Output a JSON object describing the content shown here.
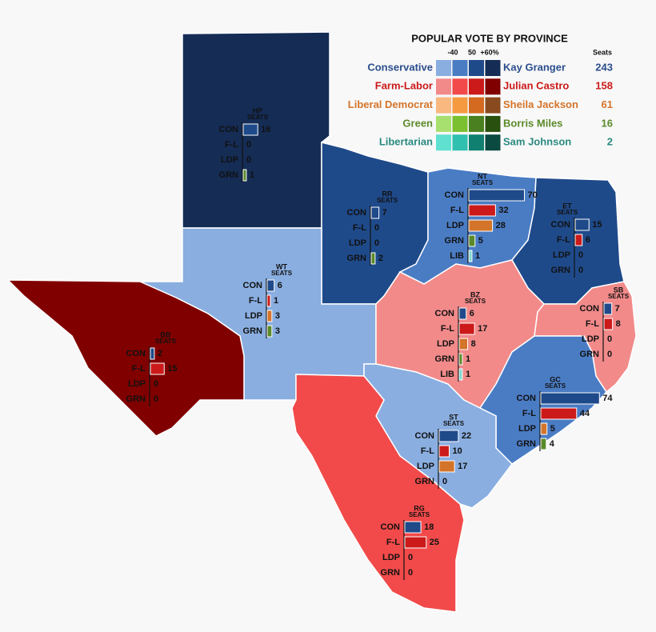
{
  "legend": {
    "title": "POPULAR VOTE BY PROVINCE",
    "scale_labels": [
      "-40",
      "50",
      "+60%"
    ],
    "seats_header": "Seats",
    "parties": [
      {
        "name": "Conservative",
        "leader": "Kay Granger",
        "seats": 243,
        "color": "#2a4e8c",
        "shades": [
          "#8aaee0",
          "#4a7cc4",
          "#1f4a8a",
          "#152c55"
        ]
      },
      {
        "name": "Farm-Labor",
        "leader": "Julian Castro",
        "seats": 158,
        "color": "#cc1a1a",
        "shades": [
          "#f28a8a",
          "#f24a4a",
          "#cc1a1a",
          "#800000"
        ]
      },
      {
        "name": "Liberal Democrat",
        "leader": "Sheila Jackson",
        "seats": 61,
        "color": "#d4742a",
        "shades": [
          "#f8b880",
          "#f59a40",
          "#d46a20",
          "#8a4a20"
        ]
      },
      {
        "name": "Green",
        "leader": "Borris Miles",
        "seats": 16,
        "color": "#5a8a2a",
        "shades": [
          "#a8e070",
          "#7ac030",
          "#4a8020",
          "#2a5010"
        ]
      },
      {
        "name": "Libertarian",
        "leader": "Sam Johnson",
        "seats": 2,
        "color": "#2a8a80",
        "shades": [
          "#60e0d0",
          "#30c0b0",
          "#108070",
          "#0a4a40"
        ]
      }
    ]
  },
  "bar_colors": {
    "CON": "#1f4a8a",
    "F-L": "#cc1a1a",
    "LDP": "#d4742a",
    "GRN": "#5a8a2a",
    "LIB": "#80d8d0"
  },
  "provinces": [
    {
      "code": "HP",
      "label": "SEATS",
      "fill": "#152c55",
      "rows": [
        {
          "party": "CON",
          "seats": 16
        },
        {
          "party": "F-L",
          "seats": 0
        },
        {
          "party": "LDP",
          "seats": 0
        },
        {
          "party": "GRN",
          "seats": 1
        }
      ]
    },
    {
      "code": "RR",
      "label": "SEATS",
      "fill": "#1f4a8a",
      "rows": [
        {
          "party": "CON",
          "seats": 7
        },
        {
          "party": "F-L",
          "seats": 0
        },
        {
          "party": "LDP",
          "seats": 0
        },
        {
          "party": "GRN",
          "seats": 2
        }
      ]
    },
    {
      "code": "NT",
      "label": "SEATS",
      "fill": "#4a7cc4",
      "rows": [
        {
          "party": "CON",
          "seats": 70
        },
        {
          "party": "F-L",
          "seats": 32
        },
        {
          "party": "LDP",
          "seats": 28
        },
        {
          "party": "GRN",
          "seats": 5
        },
        {
          "party": "LIB",
          "seats": 1
        }
      ]
    },
    {
      "code": "ET",
      "label": "SEATS",
      "fill": "#1f4a8a",
      "rows": [
        {
          "party": "CON",
          "seats": 15
        },
        {
          "party": "F-L",
          "seats": 6
        },
        {
          "party": "LDP",
          "seats": 0
        },
        {
          "party": "GRN",
          "seats": 0
        }
      ]
    },
    {
      "code": "WT",
      "label": "SEATS",
      "fill": "#8aaee0",
      "rows": [
        {
          "party": "CON",
          "seats": 6
        },
        {
          "party": "F-L",
          "seats": 1
        },
        {
          "party": "LDP",
          "seats": 3
        },
        {
          "party": "GRN",
          "seats": 3
        }
      ]
    },
    {
      "code": "BB",
      "label": "SEATS",
      "fill": "#800000",
      "rows": [
        {
          "party": "CON",
          "seats": 2
        },
        {
          "party": "F-L",
          "seats": 15
        },
        {
          "party": "LDP",
          "seats": 0
        },
        {
          "party": "GRN",
          "seats": 0
        }
      ]
    },
    {
      "code": "BZ",
      "label": "SEATS",
      "fill": "#f28a8a",
      "rows": [
        {
          "party": "CON",
          "seats": 6
        },
        {
          "party": "F-L",
          "seats": 17
        },
        {
          "party": "LDP",
          "seats": 8
        },
        {
          "party": "GRN",
          "seats": 1
        },
        {
          "party": "LIB",
          "seats": 1
        }
      ]
    },
    {
      "code": "SB",
      "label": "SEATS",
      "fill": "#f28a8a",
      "rows": [
        {
          "party": "CON",
          "seats": 7
        },
        {
          "party": "F-L",
          "seats": 8
        },
        {
          "party": "LDP",
          "seats": 0
        },
        {
          "party": "GRN",
          "seats": 0
        }
      ]
    },
    {
      "code": "GC",
      "label": "SEATS",
      "fill": "#4a7cc4",
      "rows": [
        {
          "party": "CON",
          "seats": 74
        },
        {
          "party": "F-L",
          "seats": 44
        },
        {
          "party": "LDP",
          "seats": 5
        },
        {
          "party": "GRN",
          "seats": 4
        }
      ]
    },
    {
      "code": "ST",
      "label": "SEATS",
      "fill": "#8aaee0",
      "rows": [
        {
          "party": "CON",
          "seats": 22
        },
        {
          "party": "F-L",
          "seats": 10
        },
        {
          "party": "LDP",
          "seats": 17
        },
        {
          "party": "GRN",
          "seats": 0
        }
      ]
    },
    {
      "code": "RG",
      "label": "SEATS",
      "fill": "#f24a4a",
      "rows": [
        {
          "party": "CON",
          "seats": 18
        },
        {
          "party": "F-L",
          "seats": 25
        },
        {
          "party": "LDP",
          "seats": 0
        },
        {
          "party": "GRN",
          "seats": 0
        }
      ]
    }
  ]
}
